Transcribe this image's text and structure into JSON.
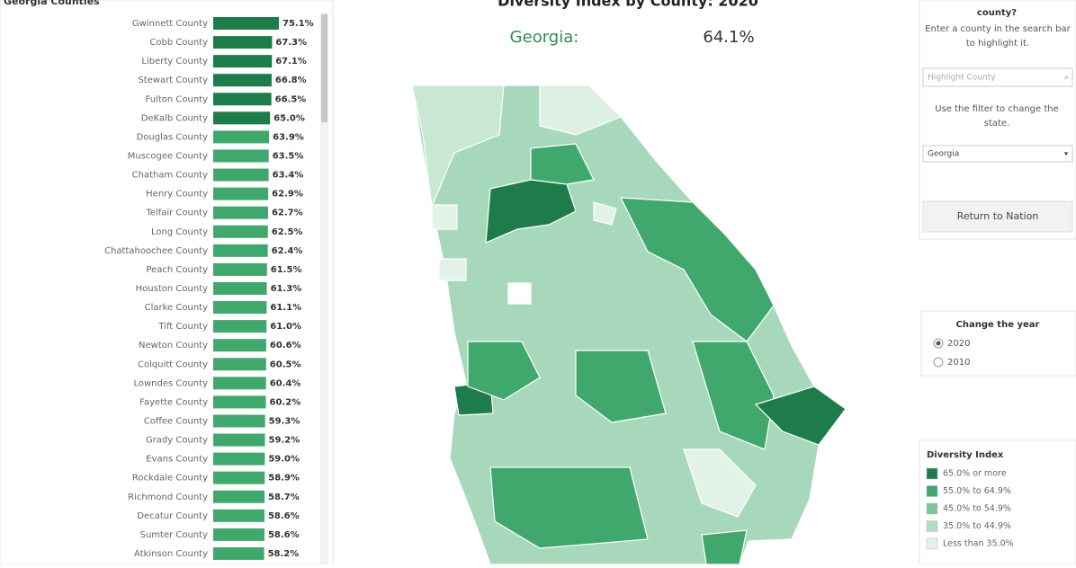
{
  "chart_data": {
    "type": "bar",
    "orientation": "horizontal",
    "title": "Georgia Counties",
    "categories": [
      "Gwinnett County",
      "Cobb County",
      "Liberty County",
      "Stewart County",
      "Fulton County",
      "DeKalb County",
      "Douglas County",
      "Muscogee County",
      "Chatham County",
      "Henry County",
      "Telfair County",
      "Long County",
      "Chattahoochee County",
      "Peach County",
      "Houston County",
      "Clarke County",
      "Tift County",
      "Newton County",
      "Colquitt County",
      "Lowndes County",
      "Fayette County",
      "Coffee County",
      "Grady County",
      "Evans County",
      "Rockdale County",
      "Richmond County",
      "Decatur County",
      "Sumter County",
      "Atkinson County"
    ],
    "values": [
      75.1,
      67.3,
      67.1,
      66.8,
      66.5,
      65.0,
      63.9,
      63.5,
      63.4,
      62.9,
      62.7,
      62.5,
      62.4,
      61.5,
      61.3,
      61.1,
      61.0,
      60.6,
      60.5,
      60.4,
      60.2,
      59.3,
      59.2,
      59.0,
      58.9,
      58.7,
      58.6,
      58.6,
      58.2
    ],
    "value_labels": [
      "75.1%",
      "67.3%",
      "67.1%",
      "66.8%",
      "66.5%",
      "65.0%",
      "63.9%",
      "63.5%",
      "63.4%",
      "62.9%",
      "62.7%",
      "62.5%",
      "62.4%",
      "61.5%",
      "61.3%",
      "61.1%",
      "61.0%",
      "60.6%",
      "60.5%",
      "60.4%",
      "60.2%",
      "59.3%",
      "59.2%",
      "59.0%",
      "58.9%",
      "58.7%",
      "58.6%",
      "58.6%",
      "58.2%"
    ],
    "colors": [
      "#1e7b4a",
      "#1e7b4a",
      "#1e7b4a",
      "#1e7b4a",
      "#1e7b4a",
      "#1e7b4a",
      "#41a86d",
      "#41a86d",
      "#41a86d",
      "#41a86d",
      "#41a86d",
      "#41a86d",
      "#41a86d",
      "#41a86d",
      "#41a86d",
      "#41a86d",
      "#41a86d",
      "#41a86d",
      "#41a86d",
      "#41a86d",
      "#41a86d",
      "#41a86d",
      "#41a86d",
      "#41a86d",
      "#41a86d",
      "#41a86d",
      "#41a86d",
      "#41a86d",
      "#41a86d"
    ]
  },
  "map": {
    "title": "Diversity Index by County: 2020",
    "state_label": "Georgia:",
    "state_value": "64.1%"
  },
  "search": {
    "heading": "county?",
    "hint": "Enter a county in the search bar to highlight it.",
    "placeholder": "Highlight County",
    "filter_hint": "Use the filter to change the state.",
    "state": "Georgia",
    "button": "Return to Nation"
  },
  "year": {
    "title": "Change the year",
    "options": [
      "2020",
      "2010"
    ]
  },
  "legend": {
    "title": "Diversity Index",
    "items": [
      {
        "label": "65.0% or more",
        "color": "#1e7b4a"
      },
      {
        "label": "55.0% to 64.9%",
        "color": "#41a86d"
      },
      {
        "label": "45.0% to 54.9%",
        "color": "#7fc49b"
      },
      {
        "label": "35.0% to 44.9%",
        "color": "#b0dcc1"
      },
      {
        "label": "Less than 35.0%",
        "color": "#e2f2e8"
      }
    ]
  }
}
